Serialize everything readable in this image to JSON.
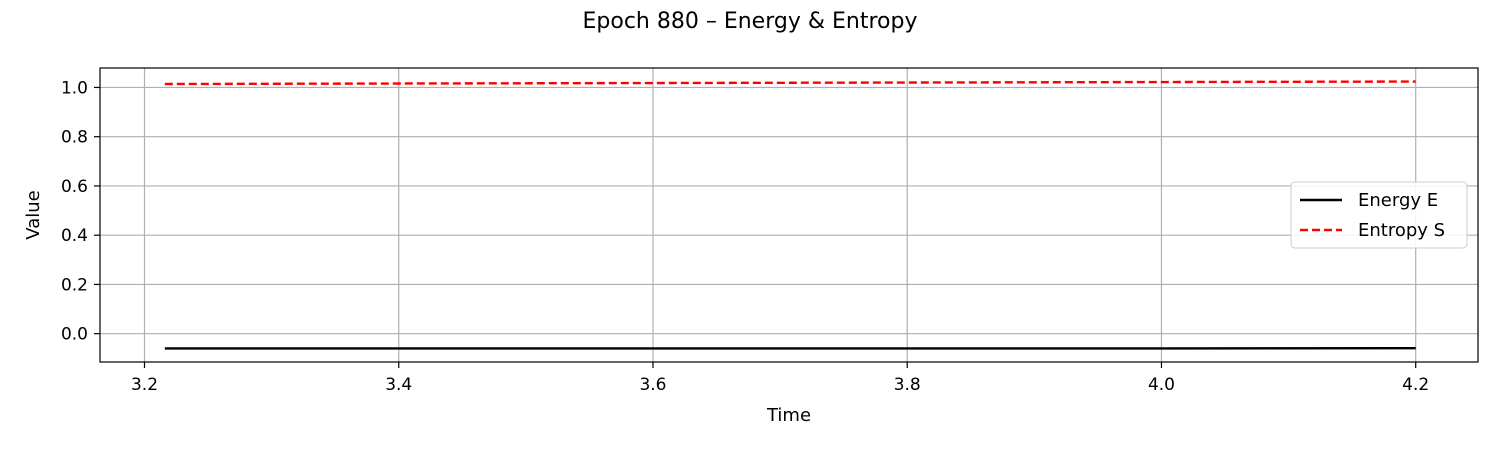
{
  "chart_data": {
    "type": "line",
    "title": "Epoch 880 – Energy & Entropy",
    "xlabel": "Time",
    "ylabel": "Value",
    "xlim": [
      3.165,
      4.249
    ],
    "ylim": [
      -0.115,
      1.079
    ],
    "xticks": [
      "3.2",
      "3.4",
      "3.6",
      "3.8",
      "4.0",
      "4.2"
    ],
    "yticks": [
      "0.0",
      "0.2",
      "0.4",
      "0.6",
      "0.8",
      "1.0"
    ],
    "grid": true,
    "legend_position": "center-right",
    "series": [
      {
        "name": "Energy E",
        "color": "#000000",
        "style": "solid",
        "x": [
          3.216,
          3.4,
          3.6,
          3.8,
          4.0,
          4.2
        ],
        "y": [
          -0.06,
          -0.06,
          -0.06,
          -0.06,
          -0.06,
          -0.059
        ]
      },
      {
        "name": "Entropy S",
        "color": "#ff0000",
        "style": "dashed",
        "x": [
          3.216,
          3.4,
          3.6,
          3.8,
          4.0,
          4.2
        ],
        "y": [
          1.014,
          1.016,
          1.018,
          1.02,
          1.022,
          1.024
        ]
      }
    ]
  }
}
